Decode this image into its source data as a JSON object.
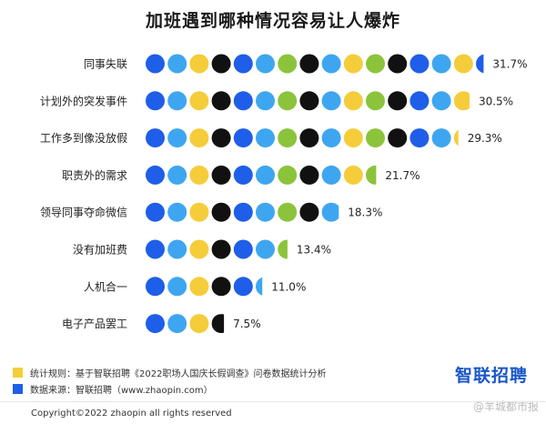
{
  "title": "加班遇到哪种情况容易让人爆炸",
  "colors": {
    "blue": "#1f5ee8",
    "sky": "#3ea6f0",
    "yellow": "#f5cd3a",
    "black": "#111111",
    "green": "#8bc43b"
  },
  "chart_data": {
    "type": "bar",
    "style": "dot-bars",
    "title": "加班遇到哪种情况容易让人爆炸",
    "categories": [
      "同事失联",
      "计划外的突发事件",
      "工作多到像没放假",
      "职责外的需求",
      "领导同事夺命微信",
      "没有加班费",
      "人机合一",
      "电子产品罢工"
    ],
    "values": [
      31.7,
      30.5,
      29.3,
      21.7,
      18.3,
      13.4,
      11.0,
      7.5
    ],
    "labels": [
      "31.7%",
      "30.5%",
      "29.3%",
      "21.7%",
      "18.3%",
      "13.4%",
      "11.0%",
      "7.5%"
    ],
    "dot_pattern": [
      "blue",
      "sky",
      "yellow",
      "black",
      "blue",
      "sky",
      "green",
      "black",
      "sky",
      "yellow",
      "green",
      "black",
      "blue",
      "sky",
      "yellow"
    ]
  },
  "legend": [
    {
      "color": "#f5cd3a",
      "text": "统计规则：基于智联招聘《2022职场人国庆长假调查》问卷数据统计分析"
    },
    {
      "color": "#1f5ee8",
      "text": "数据来源：智联招聘（www.zhaopin.com）"
    }
  ],
  "brand": "智联招聘",
  "watermark": "@羊城都市报",
  "copyright": "Copyright©2022 zhaopin all rights reserved"
}
